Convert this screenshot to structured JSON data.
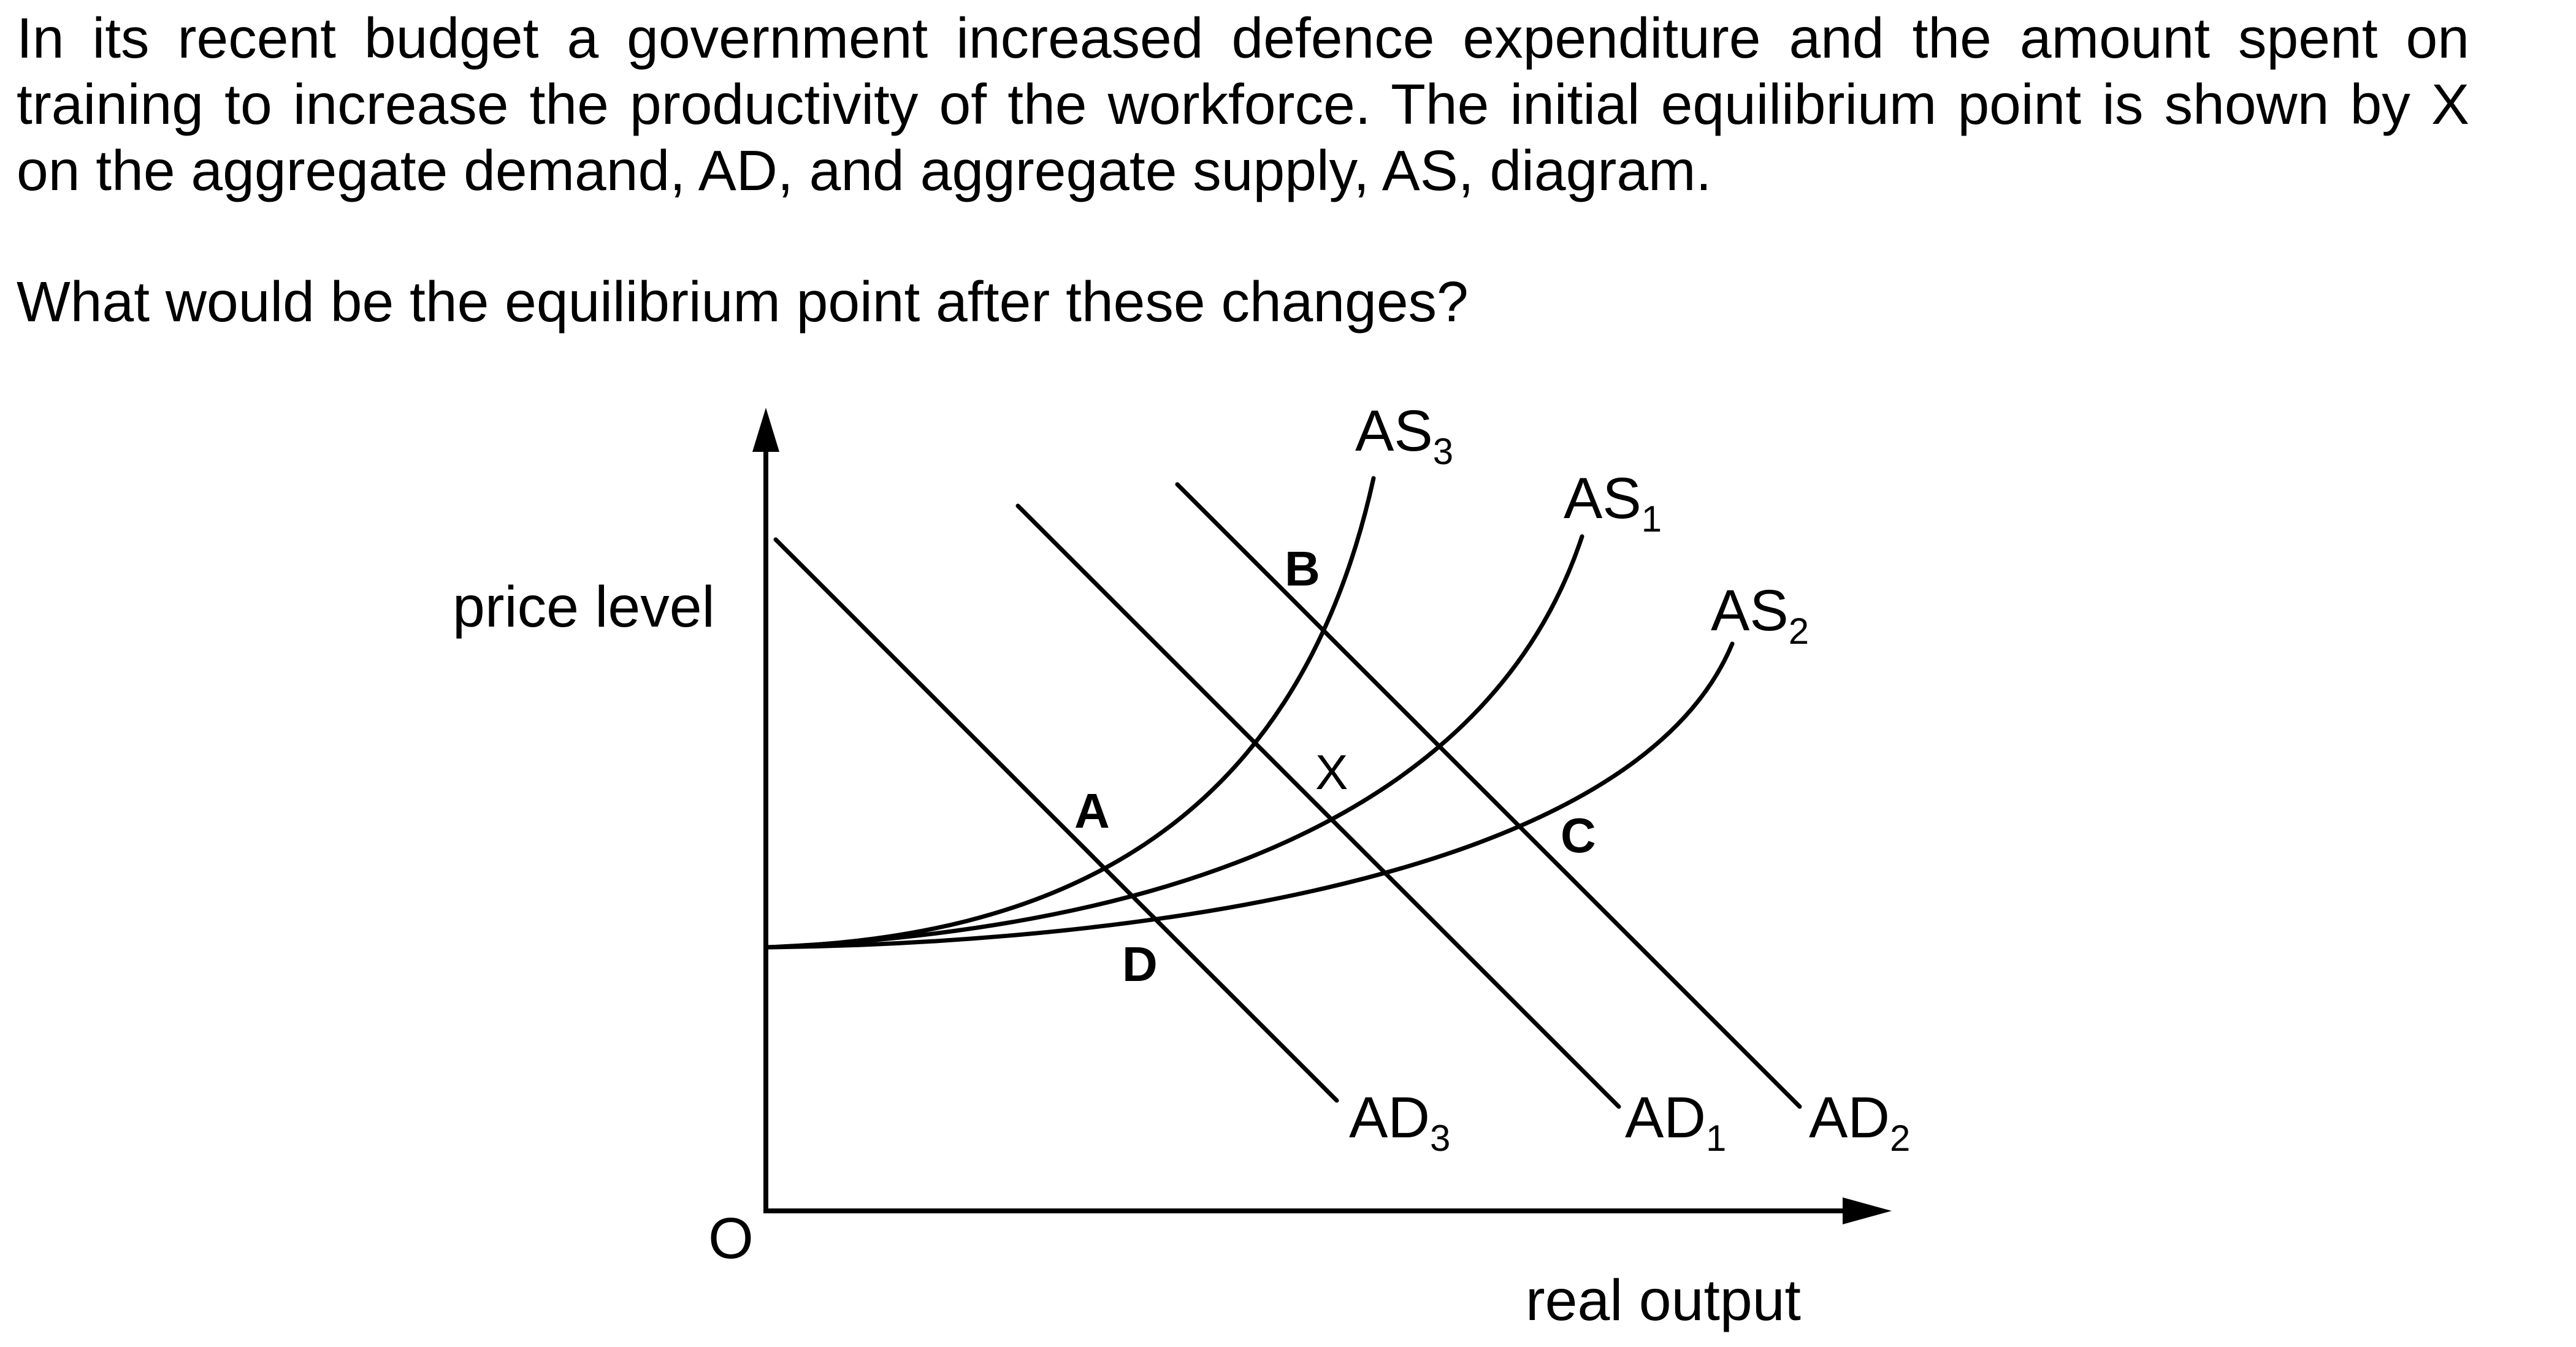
{
  "question": {
    "text": "In its recent budget a government increased defence expenditure and the amount spent on training to increase the productivity of the workforce. The initial equilibrium point is shown by X on the aggregate demand, AD, and aggregate supply, AS, diagram.",
    "prompt": "What would be the equilibrium point after these changes?"
  },
  "diagram": {
    "y_axis_label": "price level",
    "x_axis_label": "real output",
    "origin_label": "O",
    "curves": {
      "as3": {
        "base": "AS",
        "sub": "3"
      },
      "as1": {
        "base": "AS",
        "sub": "1"
      },
      "as2": {
        "base": "AS",
        "sub": "2"
      },
      "ad3": {
        "base": "AD",
        "sub": "3"
      },
      "ad1": {
        "base": "AD",
        "sub": "1"
      },
      "ad2": {
        "base": "AD",
        "sub": "2"
      }
    },
    "points": {
      "a": "A",
      "b": "B",
      "c": "C",
      "d": "D",
      "x": "X"
    }
  }
}
